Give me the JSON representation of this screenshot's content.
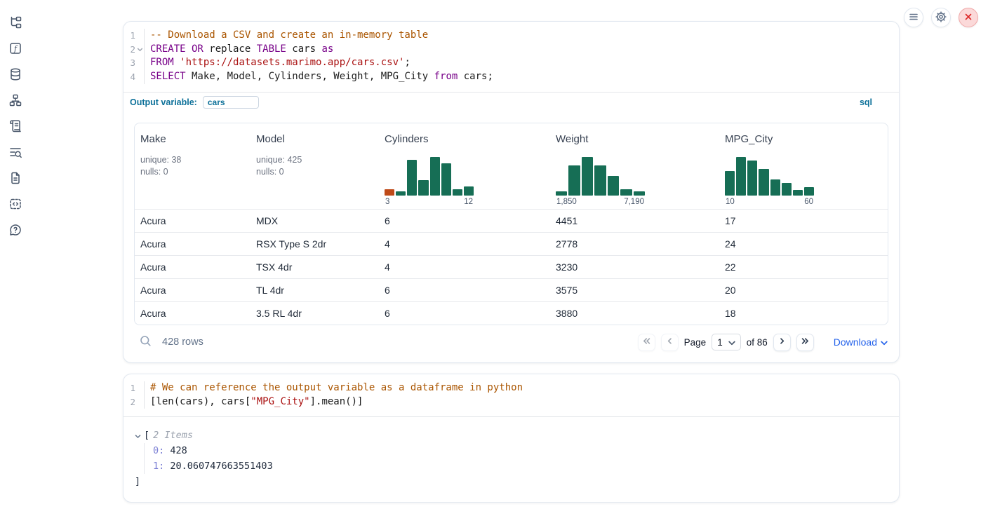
{
  "theme": {
    "accent_blue": "#0c7099",
    "link_blue": "#2563eb",
    "hist_green": "#166e55",
    "hist_orange": "#bf4a18"
  },
  "sidebar": {
    "items": [
      {
        "icon": "file-tree-icon"
      },
      {
        "icon": "variables-icon"
      },
      {
        "icon": "datasources-icon"
      },
      {
        "icon": "dependency-graph-icon"
      },
      {
        "icon": "logs-icon"
      },
      {
        "icon": "tracing-icon"
      },
      {
        "icon": "documentation-icon"
      },
      {
        "icon": "snippets-icon"
      },
      {
        "icon": "help-icon"
      }
    ]
  },
  "top_controls": [
    {
      "icon": "menu-icon"
    },
    {
      "icon": "gear-icon"
    },
    {
      "icon": "close-icon"
    }
  ],
  "cells": [
    {
      "language_badge": "sql",
      "output_variable_label": "Output variable:",
      "output_variable_value": "cars",
      "code_lines": [
        {
          "num": "1",
          "fold": false,
          "tokens": [
            {
              "k": "cm",
              "t": "-- Download a CSV and create an in-memory table"
            }
          ]
        },
        {
          "num": "2",
          "fold": true,
          "tokens": [
            {
              "k": "kw",
              "t": "CREATE OR"
            },
            {
              "k": "pl",
              "t": " replace "
            },
            {
              "k": "kw",
              "t": "TABLE"
            },
            {
              "k": "pl",
              "t": " cars "
            },
            {
              "k": "kw",
              "t": "as"
            }
          ]
        },
        {
          "num": "3",
          "fold": false,
          "tokens": [
            {
              "k": "kw",
              "t": "FROM"
            },
            {
              "k": "pl",
              "t": " "
            },
            {
              "k": "str",
              "t": "'https://datasets.marimo.app/cars.csv'"
            },
            {
              "k": "pl",
              "t": ";"
            }
          ]
        },
        {
          "num": "4",
          "fold": false,
          "tokens": [
            {
              "k": "kw",
              "t": "SELECT"
            },
            {
              "k": "pl",
              "t": " Make, Model, Cylinders, Weight, MPG_City "
            },
            {
              "k": "kw",
              "t": "from"
            },
            {
              "k": "pl",
              "t": " cars;"
            }
          ]
        }
      ]
    },
    {
      "code_lines": [
        {
          "num": "1",
          "fold": false,
          "tokens": [
            {
              "k": "cm",
              "t": "# We can reference the output variable as a dataframe in python"
            }
          ]
        },
        {
          "num": "2",
          "fold": false,
          "tokens": [
            {
              "k": "pl",
              "t": "[len(cars), cars["
            },
            {
              "k": "str",
              "t": "\"MPG_City\""
            },
            {
              "k": "pl",
              "t": "].mean()]"
            }
          ]
        }
      ]
    }
  ],
  "table": {
    "columns": [
      {
        "name": "Make",
        "stats": [
          "unique: 38",
          "nulls: 0"
        ]
      },
      {
        "name": "Model",
        "stats": [
          "unique: 425",
          "nulls: 0"
        ]
      },
      {
        "name": "Cylinders",
        "histogram": {
          "values": [
            16,
            10,
            93,
            40,
            100,
            83,
            16,
            23
          ],
          "highlight_first": true,
          "min_label": "3",
          "max_label": "12"
        }
      },
      {
        "name": "Weight",
        "histogram": {
          "values": [
            10,
            78,
            100,
            77,
            50,
            16,
            11
          ],
          "highlight_first": false,
          "min_label": "1,850",
          "max_label": "7,190"
        }
      },
      {
        "name": "MPG_City",
        "histogram": {
          "values": [
            63,
            100,
            90,
            68,
            42,
            33,
            14,
            22
          ],
          "highlight_first": false,
          "min_label": "10",
          "max_label": "60"
        }
      }
    ],
    "rows": [
      [
        "Acura",
        "MDX",
        "6",
        "4451",
        "17"
      ],
      [
        "Acura",
        "RSX Type S 2dr",
        "4",
        "2778",
        "24"
      ],
      [
        "Acura",
        "TSX 4dr",
        "4",
        "3230",
        "22"
      ],
      [
        "Acura",
        "TL 4dr",
        "6",
        "3575",
        "20"
      ],
      [
        "Acura",
        "3.5 RL 4dr",
        "6",
        "3880",
        "18"
      ]
    ],
    "rows_count": "428 rows"
  },
  "pagination": {
    "page_label": "Page",
    "page_value": "1",
    "of_label": "of 86",
    "download_label": "Download"
  },
  "python_output": {
    "open_bracket": "[",
    "items_label": "2 Items",
    "entries": [
      {
        "key": "0:",
        "value": "428"
      },
      {
        "key": "1:",
        "value": "20.060747663551403"
      }
    ],
    "close_bracket": "]"
  }
}
